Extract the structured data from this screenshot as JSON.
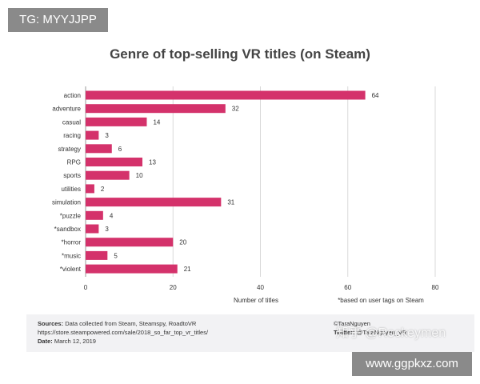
{
  "tag_label": "TG: MYYJJPP",
  "site_label": "www.ggpkxz.com",
  "watermark": "知乎 @Rockeymen",
  "chart_data": {
    "type": "bar",
    "orientation": "horizontal",
    "title": "Genre of top-selling VR titles (on Steam)",
    "categories": [
      "action",
      "adventure",
      "casual",
      "racing",
      "strategy",
      "RPG",
      "sports",
      "utilities",
      "simulation",
      "*puzzle",
      "*sandbox",
      "*horror",
      "*music",
      "*violent"
    ],
    "values": [
      64,
      32,
      14,
      3,
      6,
      13,
      10,
      2,
      31,
      4,
      3,
      20,
      5,
      21
    ],
    "xlim": [
      0,
      80
    ],
    "xticks": [
      0,
      20,
      40,
      60,
      80
    ],
    "xlabel": "Number of titles",
    "note": "*based on user tags on Steam",
    "bar_color": "#d4326b",
    "grid": true
  },
  "footer": {
    "sources_label": "Sources:",
    "sources_text": "Data collected from Steam, Steamspy, RoadtoVR",
    "url": "https://store.steampowered.com/sale/2018_so_far_top_vr_titles/",
    "date_label": "Date:",
    "date_text": "March 12, 2019",
    "author": "©TaraNguyen",
    "twitter_label": "Twitter:",
    "twitter_text": "@TaraNguyen_VR"
  }
}
